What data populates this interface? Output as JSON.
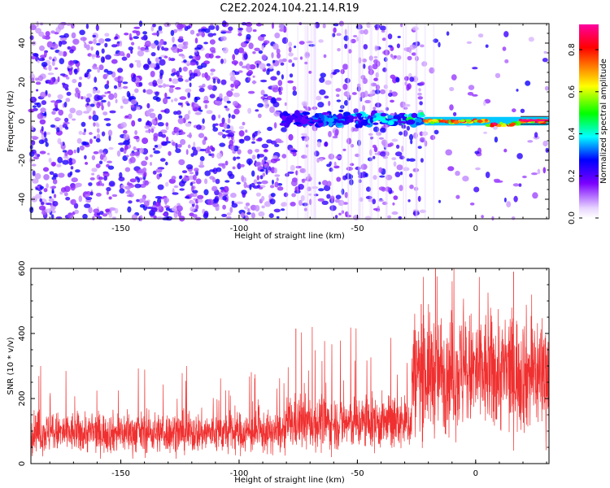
{
  "chart_data": [
    {
      "type": "heatmap",
      "title": "C2E2.2024.104.21.14.R19",
      "xlabel": "Height of straight line (km)",
      "ylabel": "Frequency (Hz)",
      "xlim": [
        -188,
        31
      ],
      "ylim": [
        -50,
        50
      ],
      "xticks": [
        "-150",
        "-100",
        "-50",
        "0"
      ],
      "xtick_values": [
        -150,
        -100,
        -50,
        0
      ],
      "yticks": [
        "40",
        "20",
        "0",
        "-20",
        "-40"
      ],
      "ytick_values": [
        40,
        20,
        0,
        -20,
        -40
      ],
      "colorbar": {
        "label": "Normalized spectral amplitude",
        "range": [
          0,
          0.92
        ],
        "ticks": [
          "0.0",
          "0.2",
          "0.4",
          "0.6",
          "0.8"
        ],
        "tick_values": [
          0.0,
          0.2,
          0.4,
          0.6,
          0.8
        ],
        "colors": [
          "#ffffff",
          "#7a00ff",
          "#0000ff",
          "#00ffff",
          "#00ff00",
          "#ffff00",
          "#ff8000",
          "#ff0000",
          "#ff00a0"
        ]
      },
      "description_regions": [
        {
          "name": "broadband noise",
          "x_range": [
            -188,
            -82
          ],
          "y_range": [
            -50,
            50
          ],
          "amplitude": 0.05
        },
        {
          "name": "signal onset",
          "x_range": [
            -82,
            -22
          ],
          "y_range": [
            -4,
            8
          ],
          "amplitude": 0.3
        },
        {
          "name": "strong narrowband line",
          "x_range": [
            -22,
            31
          ],
          "y_range": [
            -3,
            3
          ],
          "amplitude": 0.9
        }
      ]
    },
    {
      "type": "line",
      "title": "",
      "xlabel": "Height of straight line (km)",
      "ylabel": "SNR (10 * v/v)",
      "xlim": [
        -188,
        31
      ],
      "ylim": [
        0,
        600
      ],
      "xticks": [
        "-150",
        "-100",
        "-50",
        "0"
      ],
      "xtick_values": [
        -150,
        -100,
        -50,
        0
      ],
      "yticks": [
        "600",
        "400",
        "200",
        "0"
      ],
      "ytick_values": [
        600,
        400,
        200,
        0
      ],
      "color": "#f03030",
      "series_summary": [
        {
          "x_range": [
            -188,
            -80
          ],
          "mean": 95,
          "min": 15,
          "max": 300
        },
        {
          "x_range": [
            -80,
            -27
          ],
          "mean": 125,
          "min": 20,
          "max": 420
        },
        {
          "x_range": [
            -27,
            31
          ],
          "mean": 280,
          "min": 40,
          "max": 600
        }
      ],
      "peaks": [
        {
          "x": -76,
          "y": 415
        },
        {
          "x": -23,
          "y": 490
        },
        {
          "x": -17,
          "y": 600
        },
        {
          "x": 16,
          "y": 590
        }
      ]
    }
  ]
}
